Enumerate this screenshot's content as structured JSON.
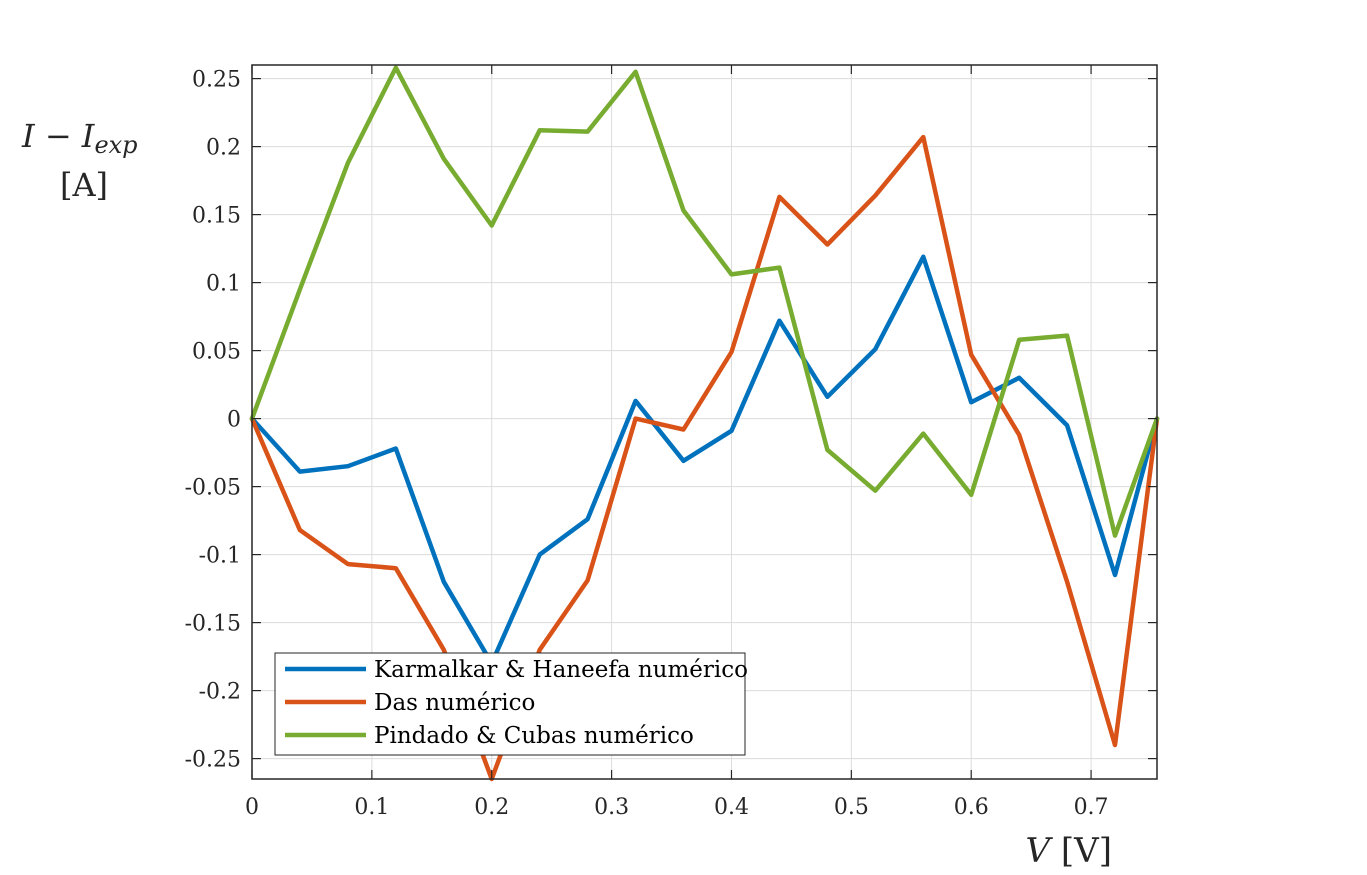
{
  "chart_data": {
    "type": "line",
    "ylabel_main": "I − I",
    "ylabel_sub": "exp",
    "ylabel_unit": "[A]",
    "xlabel_var": "V",
    "xlabel_unit": "[V]",
    "xlim": [
      0,
      0.755
    ],
    "ylim": [
      -0.265,
      0.26
    ],
    "grid": true,
    "legend_position": "bottom-left",
    "xticks": [
      0,
      0.1,
      0.2,
      0.3,
      0.4,
      0.5,
      0.6,
      0.7
    ],
    "xtick_labels": [
      "0",
      "0.1",
      "0.2",
      "0.3",
      "0.4",
      "0.5",
      "0.6",
      "0.7"
    ],
    "yticks": [
      0.25,
      0.2,
      0.15,
      0.1,
      0.05,
      0,
      -0.05,
      -0.1,
      -0.15,
      -0.2,
      -0.25
    ],
    "ytick_labels": [
      "0.25",
      "0.2",
      "0.15",
      "0.1",
      "0.05",
      "0",
      "-0.05",
      "-0.1",
      "-0.15",
      "-0.2",
      "-0.25"
    ],
    "x": [
      0,
      0.04,
      0.08,
      0.12,
      0.16,
      0.2,
      0.24,
      0.28,
      0.32,
      0.36,
      0.4,
      0.44,
      0.48,
      0.52,
      0.56,
      0.6,
      0.64,
      0.68,
      0.72,
      0.755
    ],
    "series": [
      {
        "name": "Karmalkar & Haneefa numérico",
        "color": "#0072BD",
        "values": [
          0,
          -0.039,
          -0.035,
          -0.022,
          -0.12,
          -0.18,
          -0.1,
          -0.074,
          0.013,
          -0.031,
          -0.009,
          0.072,
          0.016,
          0.051,
          0.119,
          0.012,
          0.03,
          -0.005,
          -0.115,
          0
        ]
      },
      {
        "name": "Das numérico",
        "color": "#D95319",
        "values": [
          0,
          -0.082,
          -0.107,
          -0.11,
          -0.17,
          -0.265,
          -0.17,
          -0.119,
          0,
          -0.008,
          0.049,
          0.163,
          0.128,
          0.164,
          0.207,
          0.047,
          -0.012,
          -0.12,
          -0.24,
          0
        ]
      },
      {
        "name": "Pindado & Cubas numérico",
        "color": "#77AC30",
        "values": [
          0,
          0.095,
          0.188,
          0.258,
          0.191,
          0.142,
          0.212,
          0.211,
          0.255,
          0.153,
          0.106,
          0.111,
          -0.023,
          -0.053,
          -0.011,
          -0.056,
          0.058,
          0.061,
          -0.086,
          0
        ]
      }
    ]
  }
}
